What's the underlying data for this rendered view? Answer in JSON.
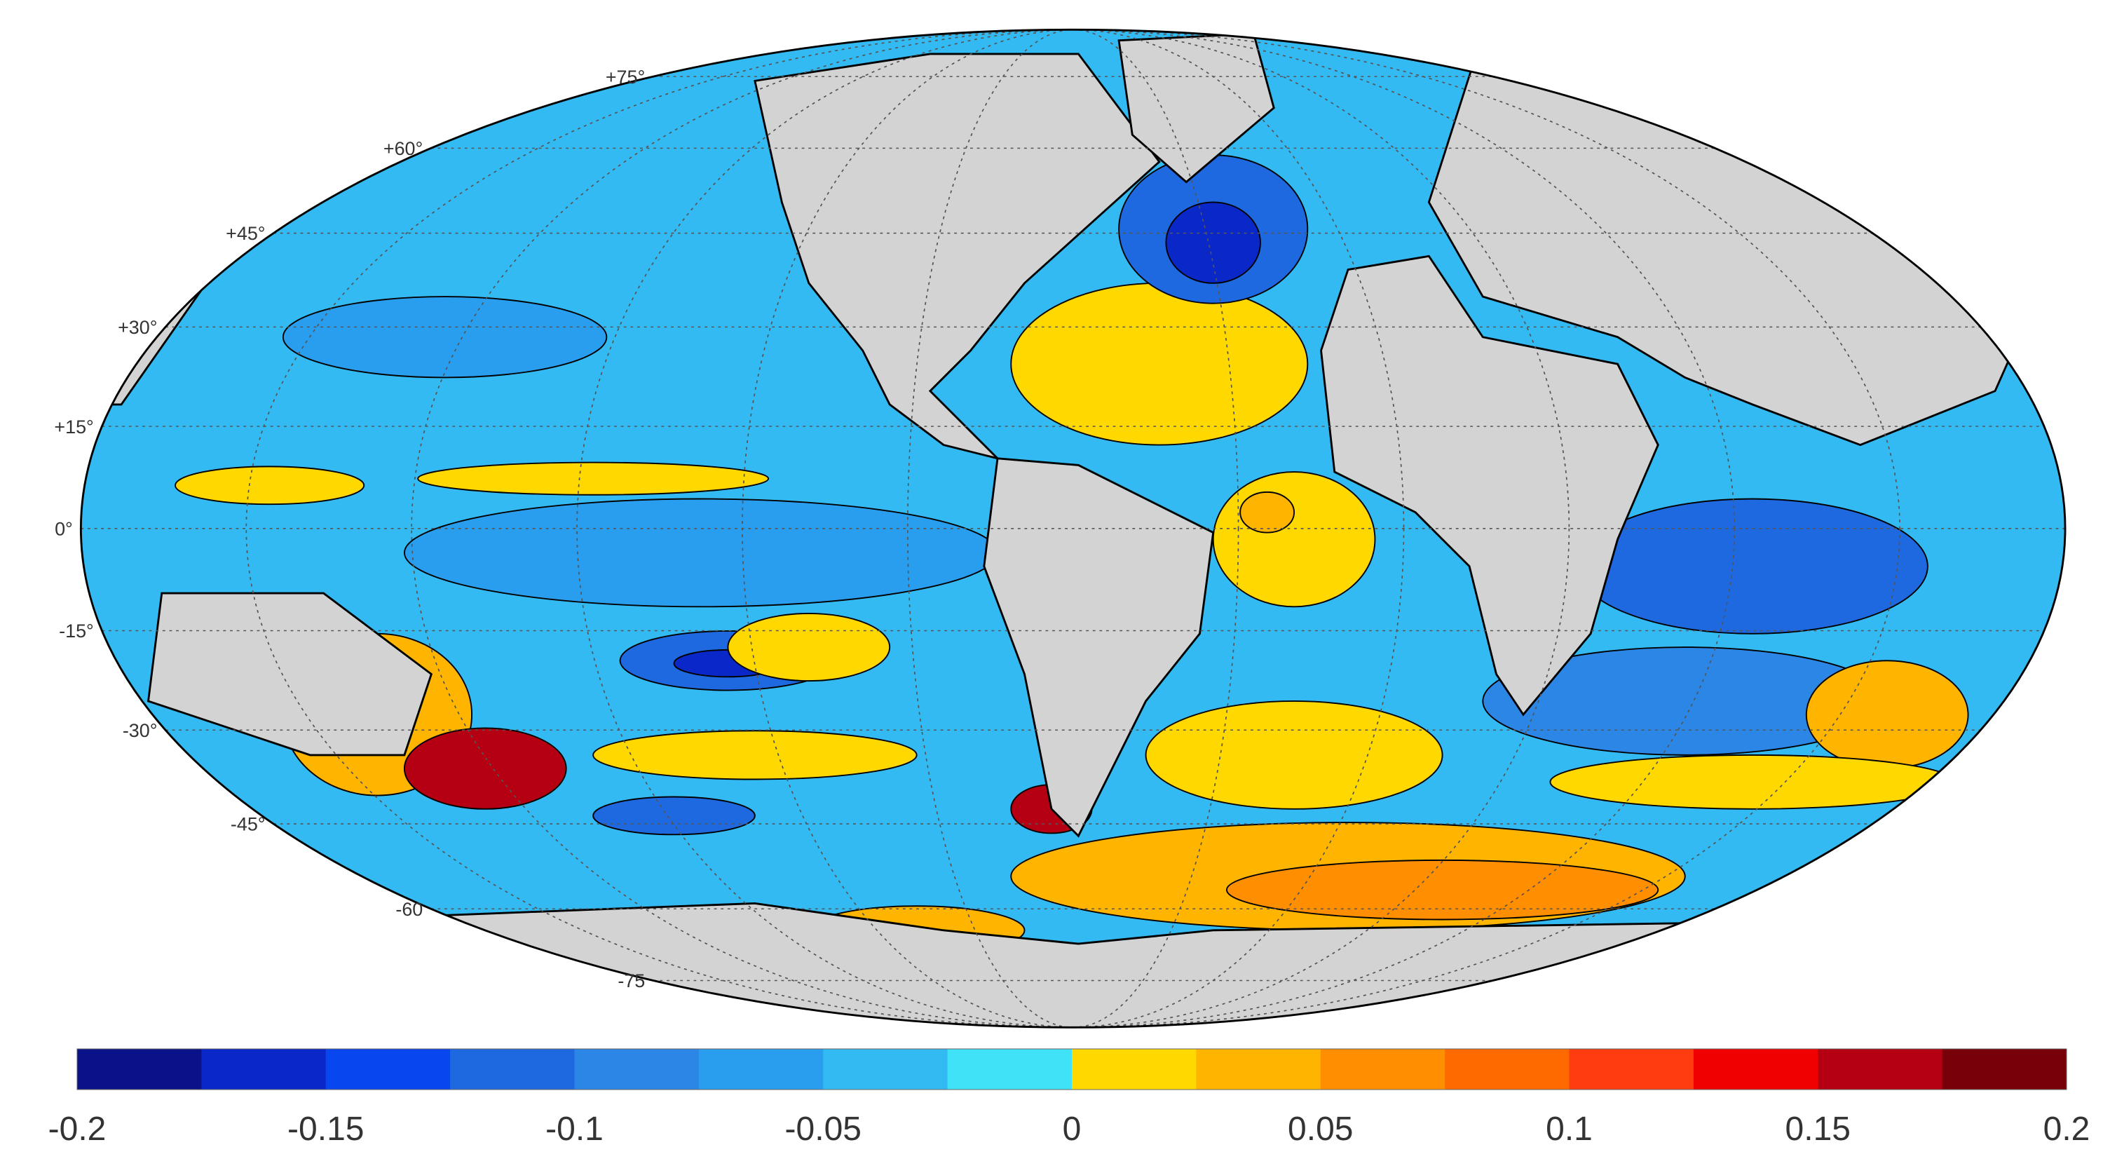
{
  "map": {
    "lat_labels": [
      "+75°",
      "+60°",
      "+45°",
      "+30°",
      "+15°",
      "0°",
      "-15°",
      "-30°",
      "-45°",
      "-60",
      "-75"
    ]
  },
  "colorbar": {
    "lim": [
      -0.2,
      0.2
    ],
    "ticks": [
      -0.2,
      -0.15,
      -0.1,
      -0.05,
      0,
      0.05,
      0.1,
      0.15,
      0.2
    ],
    "colors": [
      "#0a128a",
      "#0a28c8",
      "#0846f0",
      "#1e68e0",
      "#2c86e6",
      "#2a9eee",
      "#34baf2",
      "#40e2f8",
      "#ffd800",
      "#ffb400",
      "#ff8e00",
      "#ff6a00",
      "#ff3c10",
      "#f00000",
      "#b40012",
      "#780008"
    ]
  }
}
